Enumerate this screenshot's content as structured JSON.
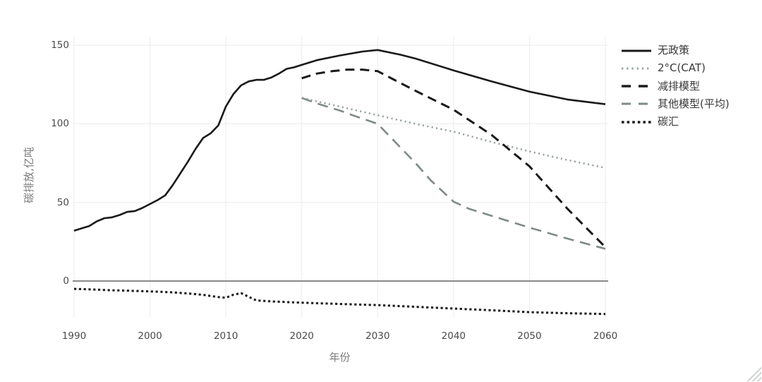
{
  "figure": {
    "x_axis_title": "年份",
    "y_axis_title": "碳排放,亿吨"
  },
  "chart_data": {
    "type": "line",
    "title": "",
    "xlabel": "年份",
    "ylabel": "碳排放,亿吨",
    "x_ticks": [
      1990,
      2000,
      2010,
      2020,
      2030,
      2040,
      2050,
      2060
    ],
    "y_ticks": [
      0,
      50,
      100,
      150
    ],
    "xlim": [
      1990,
      2060
    ],
    "ylim": [
      -23,
      155
    ],
    "grid": true,
    "legend_position": "top-right",
    "colors": {
      "line_black": "#1a1a1a",
      "line_gray_dotted": "#9aa5a2",
      "line_gray_dashed": "#7f8a87",
      "gridline": "#ebebeb",
      "zero_line": "#444444",
      "tick_text": "#4a4a4a",
      "axis_title_text": "#7b7b7b",
      "legend_text": "#383838"
    },
    "series": [
      {
        "id": "no_policy",
        "name": "无政策",
        "line_style": "solid",
        "color": "#1a1a1a",
        "points": [
          [
            1990,
            32
          ],
          [
            1991,
            33.5
          ],
          [
            1992,
            35
          ],
          [
            1993,
            38
          ],
          [
            1994,
            40
          ],
          [
            1995,
            40.5
          ],
          [
            1996,
            42
          ],
          [
            1997,
            44
          ],
          [
            1998,
            44.5
          ],
          [
            1999,
            46.5
          ],
          [
            2000,
            49
          ],
          [
            2001,
            51.5
          ],
          [
            2002,
            54.5
          ],
          [
            2003,
            61
          ],
          [
            2004,
            68.5
          ],
          [
            2005,
            76
          ],
          [
            2006,
            84
          ],
          [
            2007,
            91
          ],
          [
            2008,
            94
          ],
          [
            2009,
            99
          ],
          [
            2010,
            111
          ],
          [
            2011,
            119
          ],
          [
            2012,
            124.5
          ],
          [
            2013,
            127
          ],
          [
            2014,
            128
          ],
          [
            2015,
            128
          ],
          [
            2016,
            129.5
          ],
          [
            2017,
            132
          ],
          [
            2018,
            135
          ],
          [
            2019,
            136
          ],
          [
            2020,
            137.5
          ],
          [
            2022,
            140.5
          ],
          [
            2025,
            143.5
          ],
          [
            2028,
            146
          ],
          [
            2030,
            147
          ],
          [
            2033,
            144
          ],
          [
            2035,
            141.5
          ],
          [
            2040,
            134
          ],
          [
            2045,
            127
          ],
          [
            2050,
            120.5
          ],
          [
            2055,
            115.5
          ],
          [
            2060,
            112.5
          ]
        ]
      },
      {
        "id": "cat_2c",
        "name": "2°C(CAT)",
        "line_style": "dotted",
        "color": "#9aa5a2",
        "points": [
          [
            2020,
            116.5
          ],
          [
            2025,
            111
          ],
          [
            2030,
            105.5
          ],
          [
            2035,
            100
          ],
          [
            2040,
            95
          ],
          [
            2045,
            88.5
          ],
          [
            2050,
            82.5
          ],
          [
            2055,
            77
          ],
          [
            2060,
            72
          ]
        ]
      },
      {
        "id": "mitigation_model",
        "name": "减排模型",
        "line_style": "dashed",
        "color": "#1a1a1a",
        "points": [
          [
            2020,
            129
          ],
          [
            2022,
            132
          ],
          [
            2024,
            133.5
          ],
          [
            2026,
            134.5
          ],
          [
            2028,
            134.5
          ],
          [
            2030,
            133.5
          ],
          [
            2032,
            128.5
          ],
          [
            2035,
            121
          ],
          [
            2040,
            109
          ],
          [
            2045,
            93
          ],
          [
            2050,
            73
          ],
          [
            2055,
            46
          ],
          [
            2060,
            21.5
          ]
        ]
      },
      {
        "id": "other_models_avg",
        "name": "其他模型(平均)",
        "line_style": "long_dashed",
        "color": "#7f8a87",
        "points": [
          [
            2020,
            116.5
          ],
          [
            2022,
            113
          ],
          [
            2025,
            108.5
          ],
          [
            2027,
            105
          ],
          [
            2030,
            100
          ],
          [
            2032,
            90
          ],
          [
            2035,
            75
          ],
          [
            2037,
            64
          ],
          [
            2040,
            50.5
          ],
          [
            2042,
            46
          ],
          [
            2045,
            41.5
          ],
          [
            2050,
            34
          ],
          [
            2055,
            27
          ],
          [
            2060,
            20.5
          ]
        ]
      },
      {
        "id": "carbon_sink",
        "name": "碳汇",
        "line_style": "dense_dotted",
        "color": "#1a1a1a",
        "points": [
          [
            1990,
            -5
          ],
          [
            1992,
            -5.3
          ],
          [
            1995,
            -5.9
          ],
          [
            1998,
            -6.3
          ],
          [
            2000,
            -6.6
          ],
          [
            2003,
            -7.2
          ],
          [
            2005,
            -7.9
          ],
          [
            2007,
            -8.8
          ],
          [
            2009,
            -10.2
          ],
          [
            2010,
            -10.6
          ],
          [
            2011,
            -8.7
          ],
          [
            2012,
            -7.7
          ],
          [
            2013,
            -10
          ],
          [
            2014,
            -12.3
          ],
          [
            2016,
            -13
          ],
          [
            2018,
            -13.4
          ],
          [
            2020,
            -13.8
          ],
          [
            2025,
            -14.6
          ],
          [
            2030,
            -15.3
          ],
          [
            2035,
            -16.4
          ],
          [
            2040,
            -17.5
          ],
          [
            2045,
            -18.6
          ],
          [
            2050,
            -19.8
          ],
          [
            2055,
            -20.5
          ],
          [
            2060,
            -21
          ]
        ]
      }
    ]
  }
}
